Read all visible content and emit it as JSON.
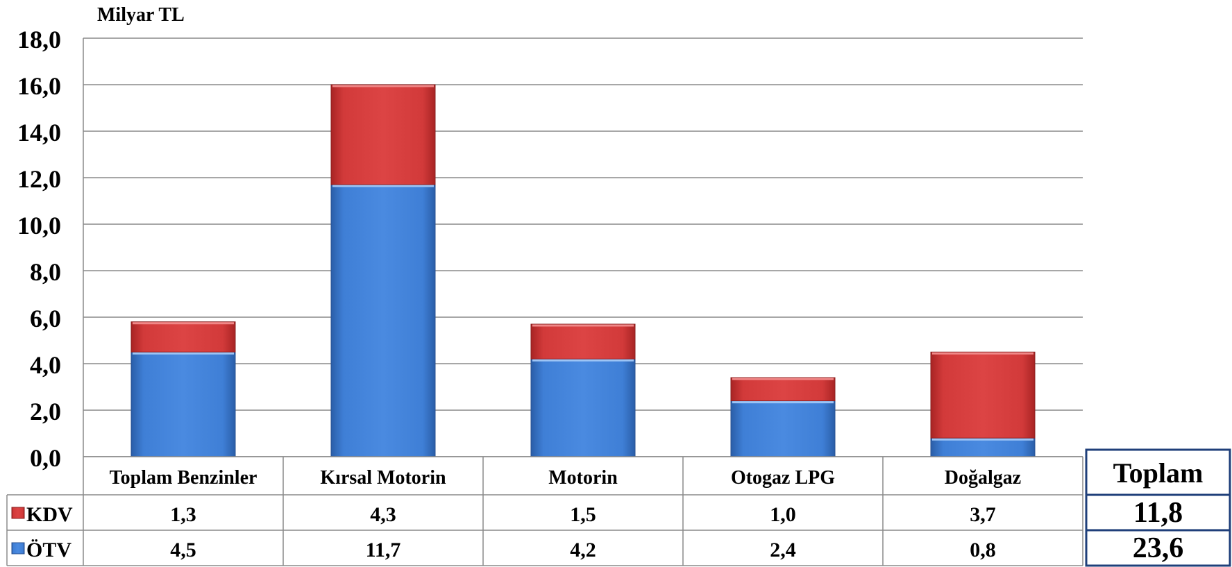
{
  "chart_data": {
    "type": "bar",
    "stacked": true,
    "unit_label": "Milyar TL",
    "ylim": [
      0,
      18
    ],
    "yticks": [
      "0,0",
      "2,0",
      "4,0",
      "6,0",
      "8,0",
      "10,0",
      "12,0",
      "14,0",
      "16,0",
      "18,0"
    ],
    "categories": [
      "Toplam Benzinler",
      "Kırsal Motorin",
      "Motorin",
      "Otogaz LPG",
      "Doğalgaz"
    ],
    "series": [
      {
        "name": "ÖTV",
        "color": "#3d7bd0",
        "values": [
          4.5,
          11.7,
          4.2,
          2.4,
          0.8
        ],
        "labels": [
          "4,5",
          "11,7",
          "4,2",
          "2,4",
          "0,8"
        ]
      },
      {
        "name": "KDV",
        "color": "#d03535",
        "values": [
          1.3,
          4.3,
          1.5,
          1.0,
          3.7
        ],
        "labels": [
          "1,3",
          "4,3",
          "1,5",
          "1,0",
          "3,7"
        ]
      }
    ],
    "grid": true,
    "legend": "data-table"
  },
  "totals": {
    "header": "Toplam",
    "kdv": "11,8",
    "otv": "23,6"
  }
}
